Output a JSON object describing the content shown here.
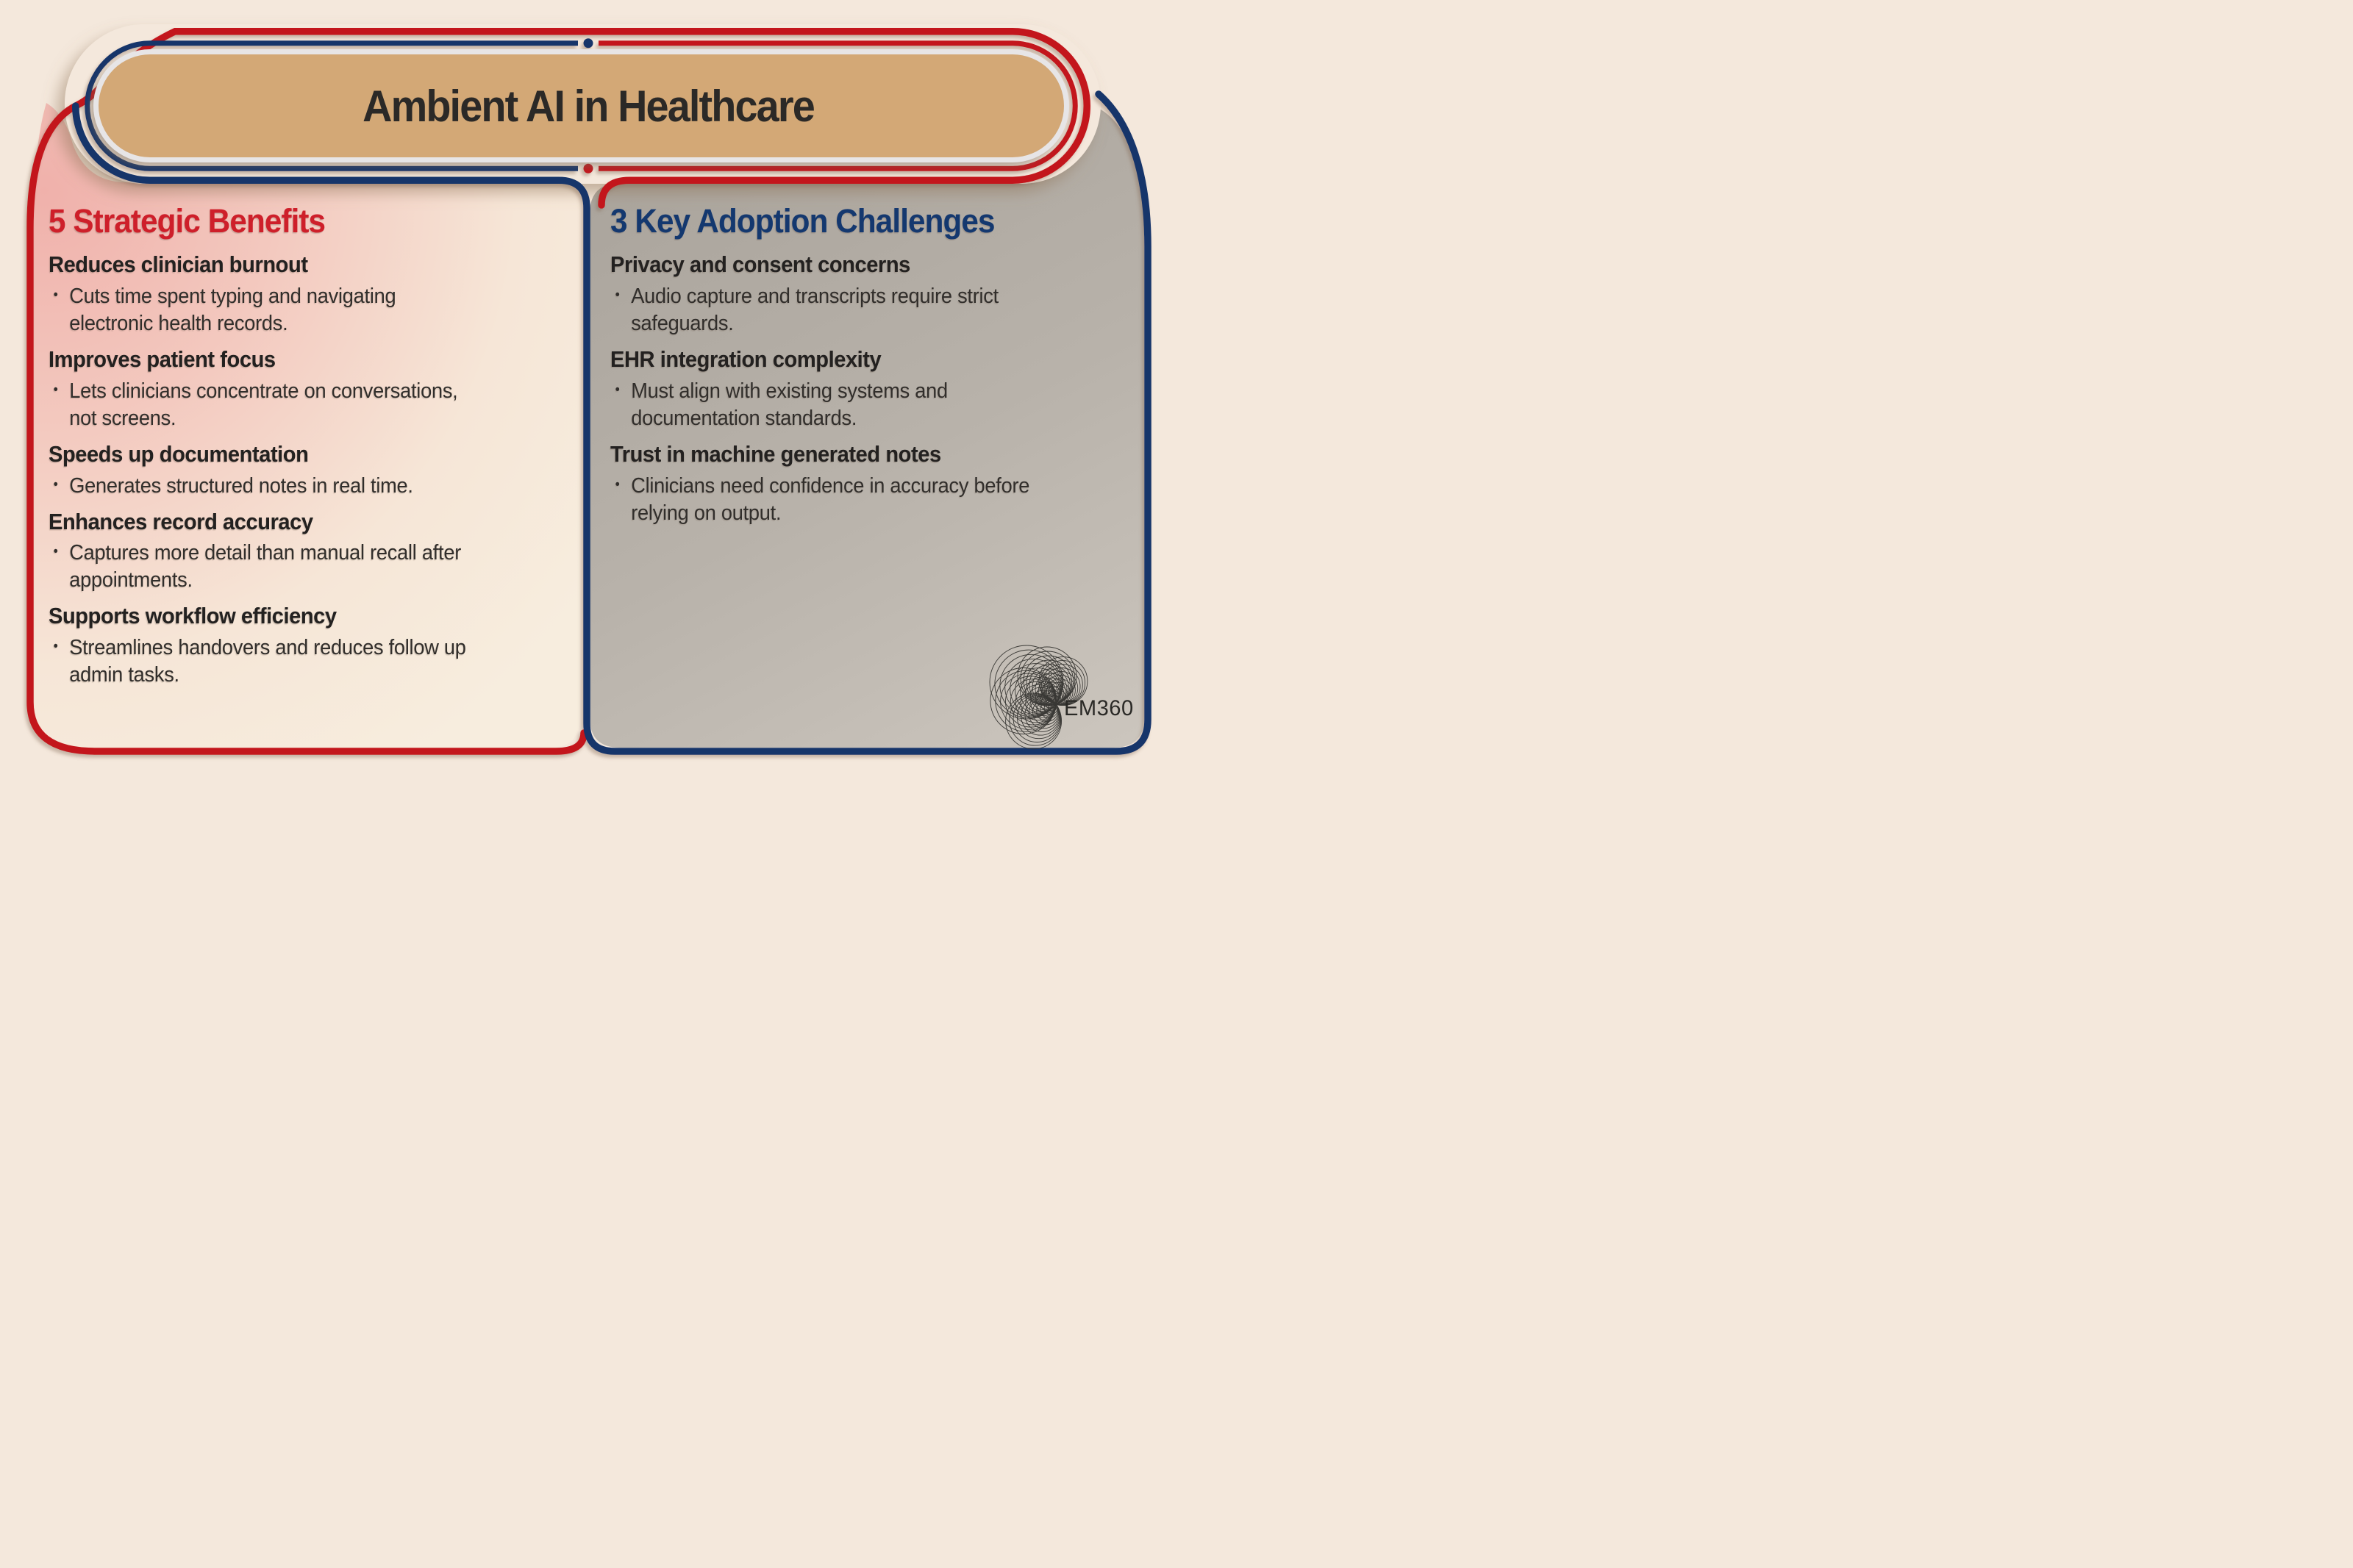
{
  "banner": {
    "title": "Ambient AI in Healthcare"
  },
  "benefits": {
    "heading": "5 Strategic Benefits",
    "items": [
      {
        "title": "Reduces clinician burnout",
        "detail": "Cuts time spent typing and navigating\nelectronic health records."
      },
      {
        "title": "Improves patient focus",
        "detail": "Lets clinicians concentrate on conversations,\nnot screens."
      },
      {
        "title": "Speeds up documentation",
        "detail": "Generates structured notes in real time."
      },
      {
        "title": "Enhances record accuracy",
        "detail": "Captures more detail than manual recall after\nappointments."
      },
      {
        "title": "Supports workflow efficiency",
        "detail": "Streamlines handovers and reduces follow up\nadmin tasks."
      }
    ]
  },
  "challenges": {
    "heading": "3 Key Adoption Challenges",
    "items": [
      {
        "title": "Privacy and consent concerns",
        "detail": "Audio capture and transcripts require strict\nsafeguards."
      },
      {
        "title": "EHR integration complexity",
        "detail": "Must align with existing systems and\ndocumentation standards."
      },
      {
        "title": "Trust in machine generated notes",
        "detail": "Clinicians need confidence in accuracy before\nrelying on output."
      }
    ]
  },
  "logo": {
    "text": "EM360"
  },
  "ui": {
    "bullet": "•"
  },
  "colors": {
    "background": "#f4e8dc",
    "banner_fill": "#d3a876",
    "banner_rim": "#e7e5e6",
    "red_line": "#c3181f",
    "red_heading": "#ce1f2a",
    "navy_line": "#16356b",
    "navy_heading": "#14386f",
    "left_panel_pink": "#f0b1ab",
    "right_panel_gray": "#b5afa7",
    "title_text": "#2b2927",
    "body_text": "#312e2b"
  }
}
